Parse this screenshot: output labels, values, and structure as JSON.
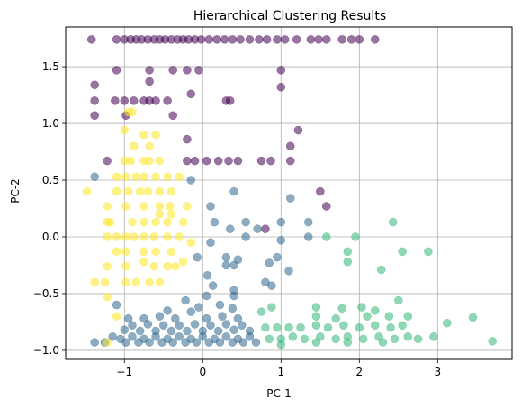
{
  "chart_data": {
    "type": "scatter",
    "title": "Hierarchical Clustering Results",
    "xlabel": "PC-1",
    "ylabel": "PC-2",
    "xlim": [
      -1.75,
      3.95
    ],
    "ylim": [
      -1.08,
      1.85
    ],
    "xticks": [
      -1,
      0,
      1,
      2,
      3
    ],
    "xtick_labels": [
      "−1",
      "0",
      "1",
      "2",
      "3"
    ],
    "yticks": [
      -1.0,
      -0.5,
      0.0,
      0.5,
      1.0,
      1.5
    ],
    "ytick_labels": [
      "−1.0",
      "−0.5",
      "0.0",
      "0.5",
      "1.0",
      "1.5"
    ],
    "grid": true,
    "marker_alpha": 0.55,
    "series": [
      {
        "color": "#440154",
        "points": [
          [
            -1.42,
            1.74
          ],
          [
            -1.1,
            1.74
          ],
          [
            -1.0,
            1.74
          ],
          [
            -0.92,
            1.74
          ],
          [
            -0.85,
            1.74
          ],
          [
            -0.78,
            1.74
          ],
          [
            -0.7,
            1.74
          ],
          [
            -0.62,
            1.74
          ],
          [
            -0.55,
            1.74
          ],
          [
            -0.48,
            1.74
          ],
          [
            -0.4,
            1.74
          ],
          [
            -0.32,
            1.74
          ],
          [
            -0.25,
            1.74
          ],
          [
            -0.18,
            1.74
          ],
          [
            -0.1,
            1.74
          ],
          [
            -0.02,
            1.74
          ],
          [
            0.08,
            1.74
          ],
          [
            0.18,
            1.74
          ],
          [
            0.28,
            1.74
          ],
          [
            0.38,
            1.74
          ],
          [
            0.48,
            1.74
          ],
          [
            0.6,
            1.74
          ],
          [
            0.72,
            1.74
          ],
          [
            0.82,
            1.74
          ],
          [
            0.95,
            1.74
          ],
          [
            1.05,
            1.74
          ],
          [
            1.2,
            1.74
          ],
          [
            1.38,
            1.74
          ],
          [
            1.48,
            1.74
          ],
          [
            1.58,
            1.74
          ],
          [
            1.78,
            1.74
          ],
          [
            1.9,
            1.74
          ],
          [
            2.0,
            1.74
          ],
          [
            2.2,
            1.74
          ],
          [
            -1.1,
            1.47
          ],
          [
            -0.68,
            1.47
          ],
          [
            -0.68,
            1.37
          ],
          [
            -0.68,
            1.2
          ],
          [
            -0.38,
            1.47
          ],
          [
            -0.2,
            1.47
          ],
          [
            -0.05,
            1.47
          ],
          [
            1.0,
            1.47
          ],
          [
            1.0,
            1.32
          ],
          [
            -1.38,
            1.34
          ],
          [
            -1.38,
            1.2
          ],
          [
            -1.38,
            1.07
          ],
          [
            -1.12,
            1.2
          ],
          [
            -1.0,
            1.2
          ],
          [
            -0.88,
            1.2
          ],
          [
            -0.75,
            1.2
          ],
          [
            -0.6,
            1.2
          ],
          [
            -0.45,
            1.2
          ],
          [
            -0.38,
            1.07
          ],
          [
            -0.15,
            1.26
          ],
          [
            0.3,
            1.2
          ],
          [
            0.35,
            1.2
          ],
          [
            -0.98,
            1.07
          ],
          [
            -1.22,
            0.67
          ],
          [
            1.22,
            0.94
          ],
          [
            1.12,
            0.8
          ],
          [
            -0.2,
            0.86
          ],
          [
            -0.2,
            0.67
          ],
          [
            -0.1,
            0.67
          ],
          [
            0.05,
            0.67
          ],
          [
            0.2,
            0.67
          ],
          [
            0.33,
            0.67
          ],
          [
            0.45,
            0.67
          ],
          [
            0.75,
            0.67
          ],
          [
            0.87,
            0.67
          ],
          [
            1.12,
            0.67
          ],
          [
            1.5,
            0.4
          ],
          [
            1.58,
            0.27
          ],
          [
            0.8,
            0.07
          ]
        ]
      },
      {
        "color": "#31688e",
        "points": [
          [
            -1.38,
            0.53
          ],
          [
            -0.15,
            0.5
          ],
          [
            0.1,
            0.27
          ],
          [
            0.4,
            0.4
          ],
          [
            0.15,
            0.13
          ],
          [
            0.55,
            0.13
          ],
          [
            1.12,
            0.34
          ],
          [
            1.0,
            0.13
          ],
          [
            0.35,
            0.07
          ],
          [
            0.7,
            0.07
          ],
          [
            0.55,
            0.0
          ],
          [
            1.35,
            0.13
          ],
          [
            1.0,
            -0.03
          ],
          [
            0.1,
            -0.05
          ],
          [
            -0.07,
            -0.18
          ],
          [
            1.35,
            0.0
          ],
          [
            0.3,
            -0.18
          ],
          [
            0.95,
            -0.18
          ],
          [
            0.45,
            -0.2
          ],
          [
            0.85,
            -0.23
          ],
          [
            1.1,
            -0.3
          ],
          [
            0.3,
            -0.25
          ],
          [
            0.4,
            -0.25
          ],
          [
            0.8,
            -0.4
          ],
          [
            0.88,
            -0.43
          ],
          [
            0.06,
            -0.34
          ],
          [
            0.13,
            -0.43
          ],
          [
            0.4,
            -0.47
          ],
          [
            0.4,
            -0.52
          ],
          [
            0.05,
            -0.52
          ],
          [
            -0.22,
            -0.56
          ],
          [
            -1.38,
            -0.93
          ],
          [
            -1.25,
            -0.93
          ],
          [
            -1.15,
            -0.88
          ],
          [
            -1.05,
            -0.9
          ],
          [
            -0.98,
            -0.93
          ],
          [
            -0.9,
            -0.88
          ],
          [
            -0.82,
            -0.93
          ],
          [
            -0.75,
            -0.9
          ],
          [
            -0.68,
            -0.93
          ],
          [
            -0.6,
            -0.88
          ],
          [
            -0.52,
            -0.93
          ],
          [
            -0.45,
            -0.9
          ],
          [
            -0.38,
            -0.93
          ],
          [
            -0.3,
            -0.88
          ],
          [
            -0.22,
            -0.93
          ],
          [
            -0.15,
            -0.9
          ],
          [
            -0.08,
            -0.93
          ],
          [
            0.0,
            -0.88
          ],
          [
            0.08,
            -0.93
          ],
          [
            0.15,
            -0.9
          ],
          [
            0.22,
            -0.93
          ],
          [
            0.3,
            -0.88
          ],
          [
            0.38,
            -0.93
          ],
          [
            0.45,
            -0.9
          ],
          [
            0.52,
            -0.93
          ],
          [
            0.6,
            -0.88
          ],
          [
            0.68,
            -0.93
          ],
          [
            -1.0,
            -0.82
          ],
          [
            -0.9,
            -0.78
          ],
          [
            -0.8,
            -0.83
          ],
          [
            -0.7,
            -0.77
          ],
          [
            -0.6,
            -0.83
          ],
          [
            -0.5,
            -0.78
          ],
          [
            -0.4,
            -0.83
          ],
          [
            -0.3,
            -0.78
          ],
          [
            -0.2,
            -0.83
          ],
          [
            -0.1,
            -0.77
          ],
          [
            0.0,
            -0.83
          ],
          [
            0.1,
            -0.78
          ],
          [
            0.2,
            -0.83
          ],
          [
            0.3,
            -0.77
          ],
          [
            0.4,
            -0.82
          ],
          [
            0.5,
            -0.78
          ],
          [
            0.6,
            -0.83
          ],
          [
            -0.95,
            -0.72
          ],
          [
            -0.75,
            -0.72
          ],
          [
            -0.55,
            -0.7
          ],
          [
            -0.35,
            -0.72
          ],
          [
            -0.15,
            -0.66
          ],
          [
            0.05,
            -0.72
          ],
          [
            0.25,
            -0.7
          ],
          [
            0.45,
            -0.72
          ],
          [
            0.22,
            -0.6
          ],
          [
            0.38,
            -0.63
          ],
          [
            -0.45,
            -0.65
          ],
          [
            -1.1,
            -0.6
          ],
          [
            -0.05,
            -0.62
          ]
        ]
      },
      {
        "color": "#35b779",
        "points": [
          [
            2.43,
            0.13
          ],
          [
            1.58,
            0.0
          ],
          [
            1.95,
            0.0
          ],
          [
            1.85,
            -0.13
          ],
          [
            2.55,
            -0.13
          ],
          [
            2.88,
            -0.13
          ],
          [
            1.85,
            -0.22
          ],
          [
            2.28,
            -0.29
          ],
          [
            2.5,
            -0.56
          ],
          [
            1.78,
            -0.63
          ],
          [
            2.03,
            -0.62
          ],
          [
            0.88,
            -0.62
          ],
          [
            0.75,
            -0.66
          ],
          [
            1.45,
            -0.62
          ],
          [
            1.45,
            -0.7
          ],
          [
            1.7,
            -0.72
          ],
          [
            2.2,
            -0.65
          ],
          [
            2.1,
            -0.7
          ],
          [
            2.38,
            -0.7
          ],
          [
            2.62,
            -0.7
          ],
          [
            3.12,
            -0.76
          ],
          [
            3.45,
            -0.71
          ],
          [
            2.95,
            -0.88
          ],
          [
            2.75,
            -0.9
          ],
          [
            3.7,
            -0.92
          ],
          [
            0.8,
            -0.8
          ],
          [
            0.95,
            -0.8
          ],
          [
            1.1,
            -0.8
          ],
          [
            1.25,
            -0.8
          ],
          [
            1.45,
            -0.78
          ],
          [
            1.6,
            -0.8
          ],
          [
            1.8,
            -0.78
          ],
          [
            2.0,
            -0.8
          ],
          [
            2.2,
            -0.78
          ],
          [
            2.4,
            -0.8
          ],
          [
            2.55,
            -0.78
          ],
          [
            0.85,
            -0.9
          ],
          [
            1.0,
            -0.9
          ],
          [
            1.15,
            -0.88
          ],
          [
            1.3,
            -0.9
          ],
          [
            1.5,
            -0.88
          ],
          [
            1.7,
            -0.9
          ],
          [
            1.85,
            -0.88
          ],
          [
            2.05,
            -0.9
          ],
          [
            2.25,
            -0.88
          ],
          [
            2.45,
            -0.9
          ],
          [
            2.62,
            -0.88
          ],
          [
            1.0,
            -0.95
          ],
          [
            1.45,
            -0.93
          ],
          [
            1.85,
            -0.93
          ],
          [
            2.3,
            -0.93
          ]
        ]
      },
      {
        "color": "#fde725",
        "points": [
          [
            -0.95,
            1.1
          ],
          [
            -0.9,
            1.1
          ],
          [
            -1.0,
            0.94
          ],
          [
            -0.75,
            0.9
          ],
          [
            -0.88,
            0.8
          ],
          [
            -0.68,
            0.8
          ],
          [
            -0.6,
            0.9
          ],
          [
            -1.0,
            0.67
          ],
          [
            -0.92,
            0.67
          ],
          [
            -0.75,
            0.67
          ],
          [
            -0.68,
            0.67
          ],
          [
            -0.55,
            0.67
          ],
          [
            -1.1,
            0.53
          ],
          [
            -0.98,
            0.53
          ],
          [
            -0.85,
            0.53
          ],
          [
            -0.75,
            0.53
          ],
          [
            -0.6,
            0.53
          ],
          [
            -0.45,
            0.53
          ],
          [
            -0.3,
            0.53
          ],
          [
            -1.48,
            0.4
          ],
          [
            -1.1,
            0.4
          ],
          [
            -0.95,
            0.4
          ],
          [
            -0.8,
            0.4
          ],
          [
            -0.7,
            0.4
          ],
          [
            -0.55,
            0.4
          ],
          [
            -0.4,
            0.4
          ],
          [
            -1.22,
            0.27
          ],
          [
            -0.98,
            0.27
          ],
          [
            -0.75,
            0.27
          ],
          [
            -0.55,
            0.27
          ],
          [
            -0.42,
            0.27
          ],
          [
            -0.2,
            0.27
          ],
          [
            -0.55,
            0.2
          ],
          [
            -0.4,
            0.2
          ],
          [
            -1.22,
            0.13
          ],
          [
            -1.18,
            0.13
          ],
          [
            -0.9,
            0.13
          ],
          [
            -0.75,
            0.13
          ],
          [
            -0.6,
            0.13
          ],
          [
            -0.45,
            0.13
          ],
          [
            -0.25,
            0.13
          ],
          [
            -1.22,
            0.0
          ],
          [
            -1.1,
            0.0
          ],
          [
            -0.98,
            0.0
          ],
          [
            -0.88,
            0.0
          ],
          [
            -0.75,
            0.0
          ],
          [
            -0.62,
            0.0
          ],
          [
            -0.45,
            0.0
          ],
          [
            -0.3,
            0.0
          ],
          [
            -0.15,
            -0.05
          ],
          [
            -1.1,
            -0.13
          ],
          [
            -0.98,
            -0.13
          ],
          [
            -0.75,
            -0.13
          ],
          [
            -0.6,
            -0.13
          ],
          [
            -0.4,
            -0.13
          ],
          [
            -1.22,
            -0.26
          ],
          [
            -0.98,
            -0.26
          ],
          [
            -0.75,
            -0.22
          ],
          [
            -0.62,
            -0.26
          ],
          [
            -0.45,
            -0.26
          ],
          [
            -0.35,
            -0.26
          ],
          [
            -0.25,
            -0.22
          ],
          [
            -1.38,
            -0.4
          ],
          [
            -1.25,
            -0.4
          ],
          [
            -0.98,
            -0.4
          ],
          [
            -0.85,
            -0.4
          ],
          [
            -0.68,
            -0.4
          ],
          [
            -0.55,
            -0.4
          ],
          [
            -1.22,
            -0.53
          ],
          [
            -1.1,
            -0.7
          ],
          [
            -1.22,
            -0.93
          ]
        ]
      }
    ]
  }
}
